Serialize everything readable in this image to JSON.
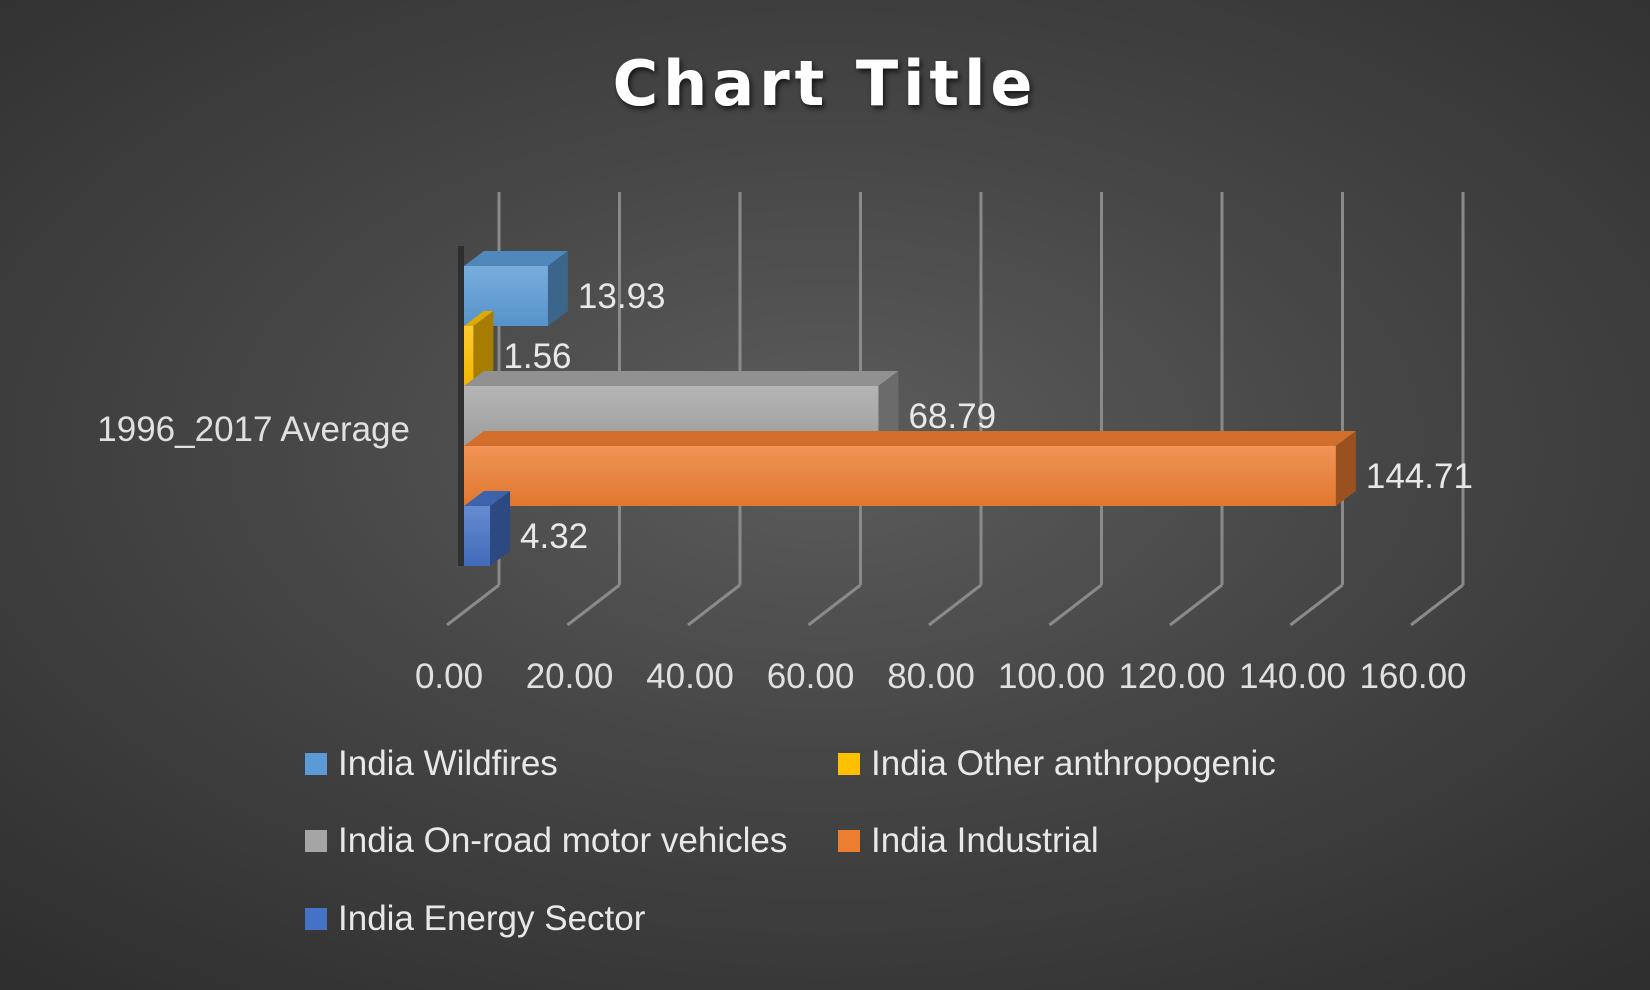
{
  "chart_data": {
    "type": "bar",
    "orientation": "horizontal",
    "three_d": true,
    "title": "Chart Title",
    "categories": [
      "1996_2017 Average"
    ],
    "series": [
      {
        "name": "India Wildfires",
        "values": [
          13.93
        ],
        "label": "13.93",
        "color": "#5b9bd5"
      },
      {
        "name": "India Other anthropogenic",
        "values": [
          1.56
        ],
        "label": "1.56",
        "color": "#ffc000"
      },
      {
        "name": "India On-road motor vehicles",
        "values": [
          68.79
        ],
        "label": "68.79",
        "color": "#a5a5a5"
      },
      {
        "name": "India Industrial",
        "values": [
          144.71
        ],
        "label": "144.71",
        "color": "#ed7d31"
      },
      {
        "name": "India Energy Sector",
        "values": [
          4.32
        ],
        "label": "4.32",
        "color": "#4472c4"
      }
    ],
    "xlim": [
      0,
      160
    ],
    "x_ticks": [
      "0.00",
      "20.00",
      "40.00",
      "60.00",
      "80.00",
      "100.00",
      "120.00",
      "140.00",
      "160.00"
    ],
    "xlabel": "",
    "ylabel": "",
    "grid": true,
    "legend_position": "bottom"
  }
}
